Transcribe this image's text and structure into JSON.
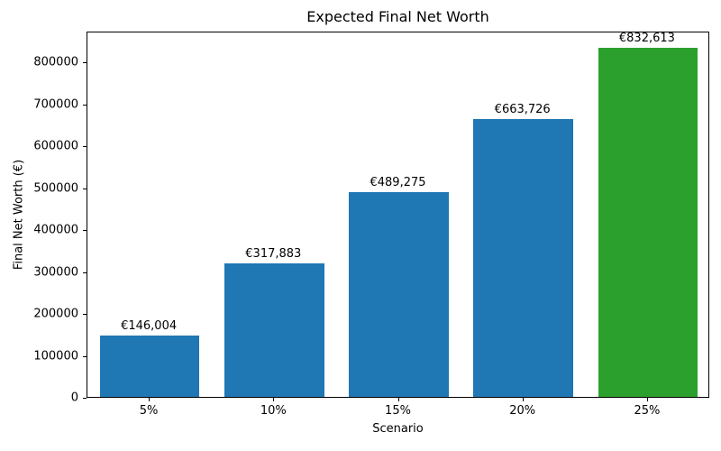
{
  "chart_data": {
    "type": "bar",
    "title": "Expected Final Net Worth",
    "xlabel": "Scenario",
    "ylabel": "Final Net Worth (€)",
    "categories": [
      "5%",
      "10%",
      "15%",
      "20%",
      "25%"
    ],
    "values": [
      146004,
      317883,
      489275,
      663726,
      832613
    ],
    "value_labels": [
      "€146,004",
      "€317,883",
      "€489,275",
      "€663,726",
      "€832,613"
    ],
    "bar_colors": [
      "#1f77b4",
      "#1f77b4",
      "#1f77b4",
      "#1f77b4",
      "#2ca02c"
    ],
    "ylim": [
      0,
      874244
    ],
    "yticks": [
      0,
      100000,
      200000,
      300000,
      400000,
      500000,
      600000,
      700000,
      800000
    ],
    "ytick_labels": [
      "0",
      "100000",
      "200000",
      "300000",
      "400000",
      "500000",
      "600000",
      "700000",
      "800000"
    ],
    "grid": false,
    "legend": "none",
    "bar_width_fraction": 0.8,
    "background": "#ffffff"
  }
}
